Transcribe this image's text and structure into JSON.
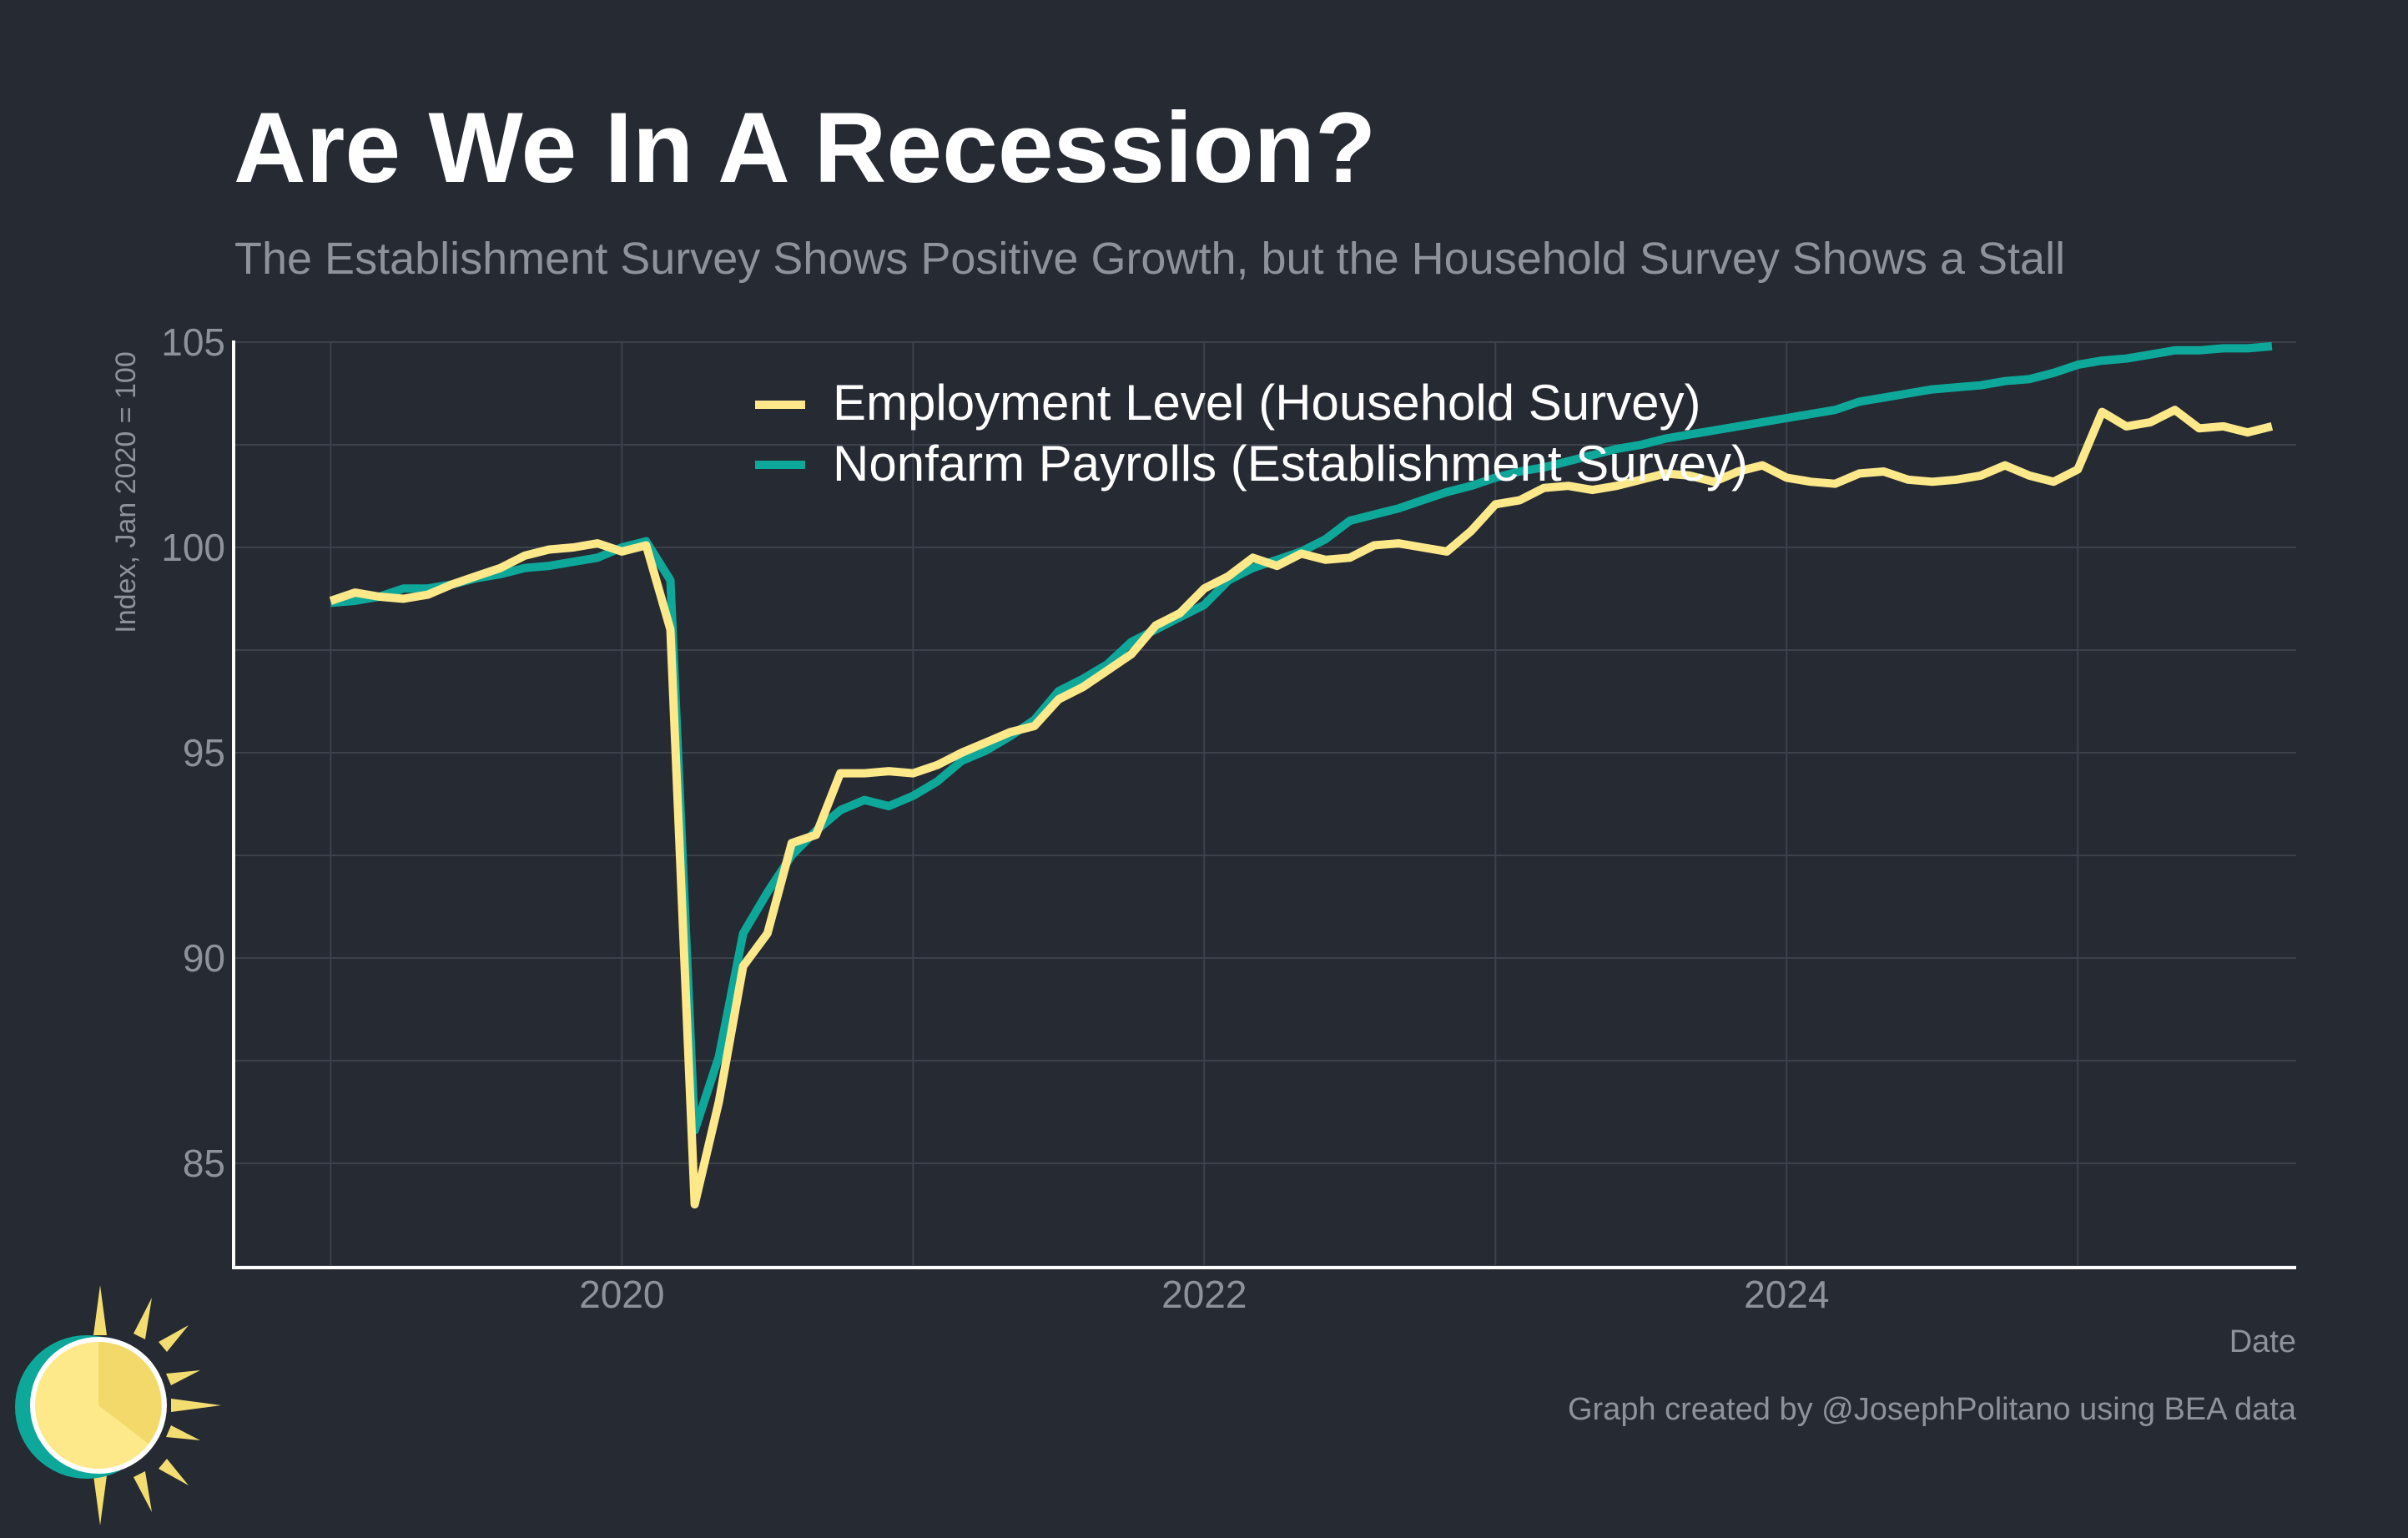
{
  "chart_data": {
    "type": "line",
    "title": "Are We In A Recession?",
    "subtitle": "The Establishment Survey Shows Positive Growth, but the Household Survey Shows a Stall",
    "xlabel": "Date",
    "ylabel": "Index, Jan 2020 = 100",
    "caption": "Graph created by @JosephPolitano using BEA data",
    "xlim": [
      "2018-09",
      "2025-10"
    ],
    "ylim": [
      82.5,
      105
    ],
    "y_ticks": [
      85,
      90,
      95,
      100,
      105
    ],
    "y_tick_labels": [
      "85",
      "90",
      "95",
      "100",
      "105"
    ],
    "x_ticks": [
      "2020-01",
      "2022-01",
      "2024-01"
    ],
    "x_tick_labels": [
      "2020",
      "2022",
      "2024"
    ],
    "grid": true,
    "legend_position": "top-center",
    "start": "2019-01",
    "series": [
      {
        "name": "Employment Level (Household Survey)",
        "color": "#fde88a",
        "values": [
          98.7,
          98.9,
          98.8,
          98.75,
          98.85,
          99.1,
          99.3,
          99.5,
          99.8,
          99.95,
          100.0,
          100.1,
          99.9,
          100.05,
          98.0,
          84.0,
          86.5,
          89.8,
          90.6,
          92.8,
          93.0,
          94.5,
          94.5,
          94.55,
          94.5,
          94.7,
          95.0,
          95.25,
          95.5,
          95.65,
          96.3,
          96.6,
          97.0,
          97.4,
          98.1,
          98.4,
          99.0,
          99.3,
          99.75,
          99.55,
          99.85,
          99.7,
          99.75,
          100.05,
          100.1,
          100.0,
          99.9,
          100.4,
          101.05,
          101.15,
          101.45,
          101.5,
          101.4,
          101.5,
          101.65,
          101.8,
          101.75,
          101.6,
          101.85,
          102.0,
          101.7,
          101.6,
          101.55,
          101.8,
          101.85,
          101.65,
          101.6,
          101.65,
          101.75,
          102.0,
          101.75,
          101.6,
          101.9,
          103.3,
          102.95,
          103.05,
          103.35,
          102.9,
          102.95,
          102.8,
          102.95
        ],
        "last_date": "2025-07"
      },
      {
        "name": "Nonfarm Payrolls (Establishment Survey)",
        "color": "#0ea89b",
        "values": [
          98.65,
          98.7,
          98.8,
          99.0,
          99.0,
          99.1,
          99.25,
          99.35,
          99.5,
          99.55,
          99.65,
          99.75,
          100.0,
          100.15,
          99.2,
          85.8,
          87.6,
          90.6,
          91.6,
          92.5,
          93.1,
          93.6,
          93.85,
          93.7,
          93.95,
          94.3,
          94.8,
          95.05,
          95.4,
          95.8,
          96.5,
          96.8,
          97.15,
          97.7,
          98.0,
          98.3,
          98.6,
          99.2,
          99.5,
          99.7,
          99.9,
          100.2,
          100.65,
          100.8,
          100.95,
          101.15,
          101.35,
          101.5,
          101.7,
          101.85,
          101.95,
          102.1,
          102.25,
          102.4,
          102.5,
          102.65,
          102.75,
          102.85,
          102.95,
          103.05,
          103.15,
          103.25,
          103.35,
          103.55,
          103.65,
          103.75,
          103.85,
          103.9,
          103.95,
          104.05,
          104.1,
          104.25,
          104.45,
          104.55,
          104.6,
          104.7,
          104.8,
          104.8,
          104.85,
          104.85,
          104.9
        ],
        "last_date": "2025-07"
      }
    ]
  },
  "colors": {
    "background": "#252a33",
    "grid": "#3c414c",
    "axis": "#ffffff",
    "title": "#ffffff",
    "subtitle": "#8e939b",
    "tick": "#8e939b",
    "legend_text": "#ffffff"
  },
  "logo": {
    "icon": "sun-icon"
  }
}
